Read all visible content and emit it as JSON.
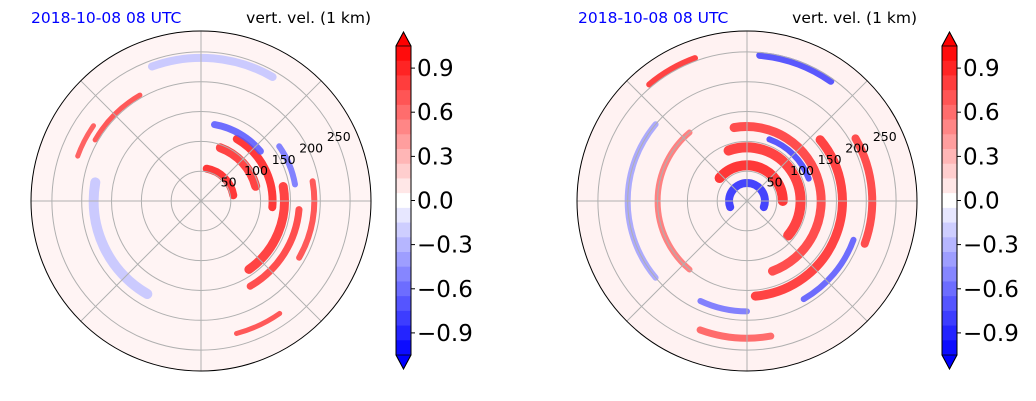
{
  "figure": {
    "panels": [
      {
        "date_label": "2018-10-08 08 UTC",
        "field_label": "vert. vel. (1 km)"
      },
      {
        "date_label": "2018-10-08 08 UTC",
        "field_label": "vert. vel. (1 km)"
      }
    ]
  },
  "chart_data": [
    {
      "type": "heatmap",
      "projection": "polar",
      "title_left": "2018-10-08 08 UTC",
      "title_right": "vert. vel. (1 km)",
      "radial_ticks": [
        "50",
        "100",
        "150",
        "200",
        "250"
      ],
      "radial_values": [
        50,
        100,
        150,
        200,
        250
      ],
      "rmax": 285,
      "angular_grid_deg": [
        0,
        45,
        90,
        135,
        180,
        225,
        270,
        315
      ],
      "grid": true,
      "colormap": "bwr",
      "clim": [
        -1.05,
        1.05
      ],
      "colorbar_ticks": [
        "0.9",
        "0.6",
        "0.3",
        "0.0",
        "−0.3",
        "−0.6",
        "−0.9"
      ],
      "colorbar_tick_values": [
        0.9,
        0.6,
        0.3,
        0.0,
        -0.3,
        -0.6,
        -0.9
      ],
      "colorbar_extend": "both",
      "features": [
        {
          "kind": "arc",
          "r": 55,
          "a0": 10,
          "a1": 80,
          "v": 0.95,
          "w": 8
        },
        {
          "kind": "arc",
          "r": 95,
          "a0": 15,
          "a1": 70,
          "v": 0.9,
          "w": 9
        },
        {
          "kind": "arc",
          "r": 120,
          "a0": -5,
          "a1": 60,
          "v": 0.95,
          "w": 8
        },
        {
          "kind": "arc",
          "r": 140,
          "a0": -55,
          "a1": 10,
          "v": 0.9,
          "w": 9
        },
        {
          "kind": "arc",
          "r": 165,
          "a0": -60,
          "a1": -5,
          "v": 0.85,
          "w": 7
        },
        {
          "kind": "arc",
          "r": 130,
          "a0": 40,
          "a1": 80,
          "v": -0.7,
          "w": 7
        },
        {
          "kind": "arc",
          "r": 160,
          "a0": 10,
          "a1": 35,
          "v": -0.6,
          "w": 6
        },
        {
          "kind": "arc",
          "r": 190,
          "a0": -30,
          "a1": 10,
          "v": 0.8,
          "w": 6
        },
        {
          "kind": "arc",
          "r": 205,
          "a0": 120,
          "a1": 150,
          "v": 0.8,
          "w": 5
        },
        {
          "kind": "arc",
          "r": 230,
          "a0": -75,
          "a1": -55,
          "v": 0.8,
          "w": 5
        },
        {
          "kind": "arc",
          "r": 220,
          "a0": 145,
          "a1": 160,
          "v": 0.75,
          "w": 5
        },
        {
          "kind": "arc",
          "r": 180,
          "a0": 170,
          "a1": 240,
          "v": -0.25,
          "w": 10
        },
        {
          "kind": "arc",
          "r": 240,
          "a0": 60,
          "a1": 110,
          "v": -0.25,
          "w": 8
        }
      ]
    },
    {
      "type": "heatmap",
      "projection": "polar",
      "title_left": "2018-10-08 08 UTC",
      "title_right": "vert. vel. (1 km)",
      "radial_ticks": [
        "50",
        "100",
        "150",
        "200",
        "250"
      ],
      "radial_values": [
        50,
        100,
        150,
        200,
        250
      ],
      "rmax": 285,
      "angular_grid_deg": [
        0,
        45,
        90,
        135,
        180,
        225,
        270,
        315
      ],
      "grid": true,
      "colormap": "bwr",
      "clim": [
        -1.05,
        1.05
      ],
      "colorbar_ticks": [
        "0.9",
        "0.6",
        "0.3",
        "0.0",
        "−0.3",
        "−0.6",
        "−0.9"
      ],
      "colorbar_tick_values": [
        0.9,
        0.6,
        0.3,
        0.0,
        -0.3,
        -0.6,
        -0.9
      ],
      "colorbar_extend": "both",
      "features": [
        {
          "kind": "arc",
          "r": 30,
          "a0": -20,
          "a1": 200,
          "v": -0.9,
          "w": 8
        },
        {
          "kind": "arc",
          "r": 60,
          "a0": 0,
          "a1": 140,
          "v": 0.95,
          "w": 10
        },
        {
          "kind": "arc",
          "r": 90,
          "a0": -40,
          "a1": 110,
          "v": 0.9,
          "w": 10
        },
        {
          "kind": "arc",
          "r": 125,
          "a0": -70,
          "a1": 100,
          "v": 0.85,
          "w": 9
        },
        {
          "kind": "arc",
          "r": 160,
          "a0": -85,
          "a1": 40,
          "v": 0.9,
          "w": 9
        },
        {
          "kind": "arc",
          "r": 110,
          "a0": 20,
          "a1": 70,
          "v": -0.8,
          "w": 6
        },
        {
          "kind": "arc",
          "r": 190,
          "a0": -60,
          "a1": -20,
          "v": -0.7,
          "w": 6
        },
        {
          "kind": "arc",
          "r": 210,
          "a0": -20,
          "a1": 30,
          "v": 0.85,
          "w": 8
        },
        {
          "kind": "arc",
          "r": 245,
          "a0": 55,
          "a1": 85,
          "v": -0.8,
          "w": 7
        },
        {
          "kind": "arc",
          "r": 255,
          "a0": 110,
          "a1": 130,
          "v": 0.9,
          "w": 6
        },
        {
          "kind": "arc",
          "r": 150,
          "a0": 130,
          "a1": 230,
          "v": 0.6,
          "w": 6
        },
        {
          "kind": "arc",
          "r": 200,
          "a0": 140,
          "a1": 220,
          "v": -0.4,
          "w": 6
        },
        {
          "kind": "arc",
          "r": 230,
          "a0": -110,
          "a1": -80,
          "v": 0.7,
          "w": 7
        },
        {
          "kind": "arc",
          "r": 185,
          "a0": -115,
          "a1": -90,
          "v": -0.6,
          "w": 6
        }
      ]
    }
  ]
}
